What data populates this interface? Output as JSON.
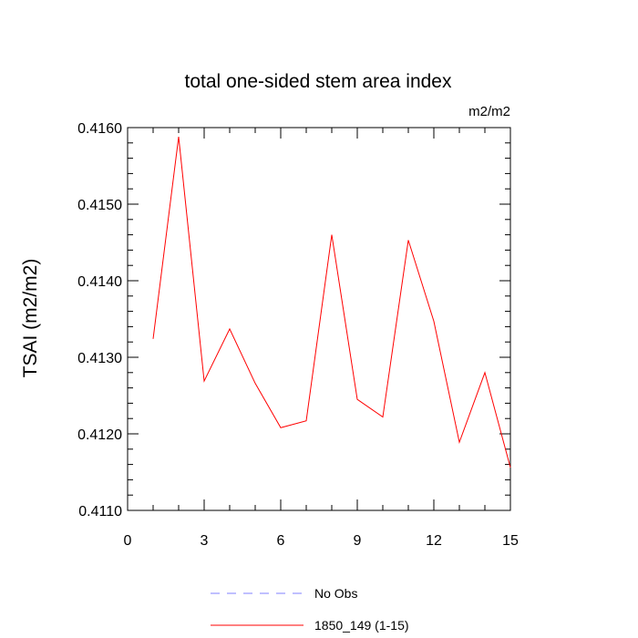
{
  "chart_data": {
    "type": "line",
    "title": "total one-sided stem area index",
    "units_label": "m2/m2",
    "xlabel": "",
    "ylabel": "TSAI  (m2/m2)",
    "xlim": [
      0,
      15
    ],
    "ylim": [
      0.411,
      0.416
    ],
    "x_ticks": [
      0,
      3,
      6,
      9,
      12,
      15
    ],
    "x_tick_labels": [
      "0",
      "3",
      "6",
      "9",
      "12",
      "15"
    ],
    "y_ticks": [
      0.411,
      0.412,
      0.413,
      0.414,
      0.415,
      0.416
    ],
    "y_tick_labels": [
      "0.4110",
      "0.4120",
      "0.4130",
      "0.4140",
      "0.4150",
      "0.4160"
    ],
    "grid": false,
    "legend_position": "bottom-center",
    "series": [
      {
        "name": "1850_149 (1-15)",
        "color": "#ff0000",
        "dash": "solid",
        "x": [
          1,
          2,
          3,
          4,
          5,
          6,
          7,
          8,
          9,
          10,
          11,
          12,
          13,
          14,
          15
        ],
        "y": [
          0.41324,
          0.41588,
          0.41269,
          0.41337,
          0.41266,
          0.41208,
          0.41217,
          0.4146,
          0.41245,
          0.41222,
          0.41453,
          0.41347,
          0.41189,
          0.4128,
          0.41156
        ]
      }
    ],
    "legend": [
      {
        "label": "No Obs",
        "color": "#8080ff",
        "dash": "dashed"
      },
      {
        "label": "1850_149 (1-15)",
        "color": "#ff0000",
        "dash": "solid"
      }
    ]
  }
}
